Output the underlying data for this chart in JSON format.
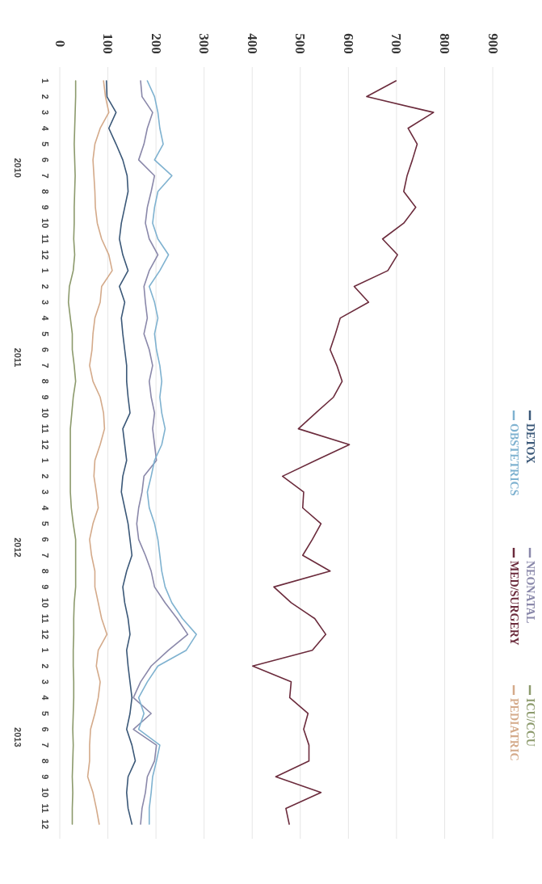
{
  "chart_data": {
    "type": "line",
    "categories": [
      "1",
      "2",
      "3",
      "4",
      "5",
      "6",
      "7",
      "8",
      "9",
      "10",
      "11",
      "12",
      "1",
      "2",
      "3",
      "4",
      "5",
      "6",
      "7",
      "8",
      "9",
      "10",
      "11",
      "12",
      "1",
      "2",
      "3",
      "4",
      "5",
      "6",
      "7",
      "8",
      "9",
      "10",
      "11",
      "12",
      "1",
      "2",
      "3",
      "4",
      "5",
      "6",
      "7",
      "8",
      "9",
      "10",
      "11",
      "12"
    ],
    "annotations": [
      "2010",
      "2011",
      "2012",
      "2013"
    ],
    "orientation": "horizontal",
    "xlim": [
      0,
      900
    ],
    "xticks": [
      0,
      100,
      200,
      300,
      400,
      500,
      600,
      700,
      800,
      900
    ],
    "grid": "x",
    "legend": "right",
    "marker": "none",
    "line_style": "solid",
    "series": [
      {
        "name": "DETOX",
        "color": "#3b5878",
        "values": [
          97,
          98,
          117,
          102,
          117,
          131,
          140,
          142,
          135,
          128,
          124,
          131,
          142,
          124,
          135,
          128,
          131,
          135,
          139,
          139,
          142,
          146,
          131,
          135,
          139,
          131,
          128,
          135,
          142,
          146,
          150,
          139,
          131,
          135,
          142,
          146,
          139,
          142,
          146,
          150,
          146,
          139,
          150,
          157,
          142,
          139,
          142,
          150
        ]
      },
      {
        "name": "NEONATAL",
        "color": "#8a88aa",
        "values": [
          168,
          171,
          193,
          182,
          175,
          164,
          197,
          190,
          182,
          178,
          186,
          204,
          186,
          175,
          178,
          182,
          175,
          186,
          193,
          186,
          190,
          197,
          193,
          197,
          201,
          175,
          171,
          164,
          160,
          164,
          178,
          190,
          197,
          219,
          244,
          266,
          226,
          190,
          168,
          153,
          190,
          153,
          201,
          197,
          182,
          178,
          171,
          168
        ]
      },
      {
        "name": "ICU/CCU",
        "color": "#8c9a6c",
        "values": [
          33,
          33,
          32,
          31,
          30,
          31,
          32,
          31,
          30,
          30,
          29,
          31,
          28,
          20,
          18,
          22,
          26,
          26,
          30,
          33,
          28,
          25,
          22,
          22,
          22,
          22,
          22,
          24,
          28,
          33,
          33,
          33,
          33,
          30,
          29,
          29,
          28,
          28,
          29,
          29,
          28,
          27,
          28,
          27,
          26,
          27,
          26,
          26
        ]
      },
      {
        "name": "OBSTETRICS",
        "color": "#7fb2d0",
        "values": [
          182,
          197,
          204,
          208,
          215,
          197,
          233,
          204,
          197,
          193,
          204,
          226,
          208,
          186,
          197,
          204,
          197,
          201,
          208,
          212,
          208,
          212,
          219,
          212,
          197,
          190,
          182,
          186,
          197,
          204,
          208,
          212,
          219,
          233,
          255,
          284,
          263,
          204,
          182,
          164,
          175,
          164,
          208,
          201,
          193,
          190,
          186,
          186
        ]
      },
      {
        "name": "MED/SURGERY",
        "color": "#6b2b3c",
        "values": [
          699,
          638,
          777,
          724,
          743,
          733,
          722,
          715,
          740,
          715,
          671,
          702,
          682,
          612,
          642,
          583,
          573,
          562,
          576,
          587,
          569,
          532,
          496,
          602,
          532,
          463,
          507,
          505,
          543,
          525,
          505,
          562,
          445,
          481,
          530,
          553,
          525,
          401,
          481,
          478,
          516,
          507,
          518,
          518,
          449,
          543,
          470,
          477
        ]
      },
      {
        "name": "PEDIATRIC",
        "color": "#d4aa8a",
        "values": [
          91,
          95,
          102,
          84,
          73,
          69,
          71,
          73,
          74,
          78,
          87,
          102,
          109,
          87,
          84,
          73,
          69,
          67,
          62,
          69,
          84,
          91,
          93,
          84,
          73,
          71,
          76,
          80,
          69,
          62,
          66,
          73,
          73,
          80,
          87,
          98,
          80,
          76,
          84,
          80,
          73,
          64,
          62,
          62,
          58,
          69,
          76,
          82
        ]
      }
    ]
  }
}
